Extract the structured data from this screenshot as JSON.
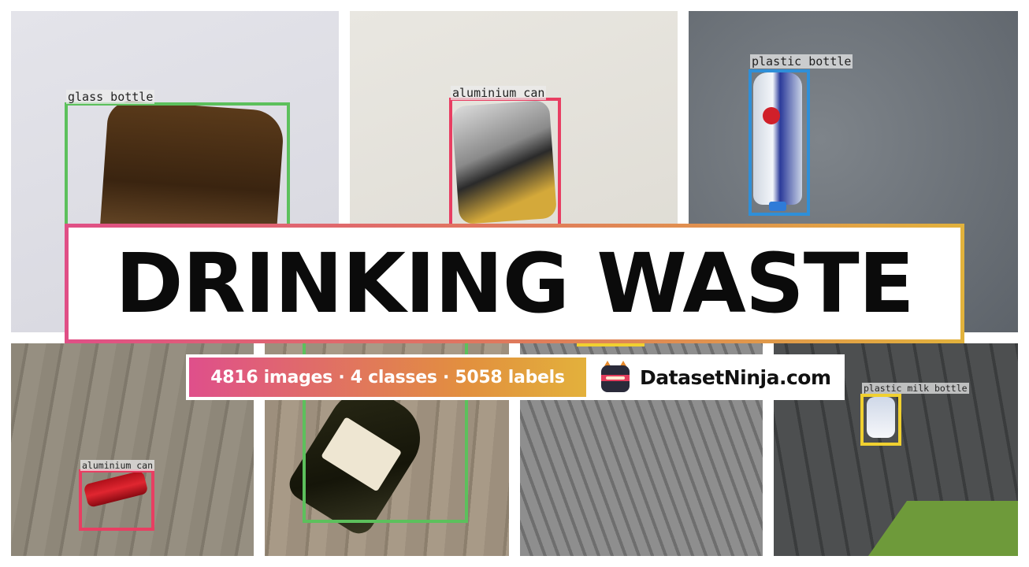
{
  "title": "DRINKING WASTE",
  "stats": "4816 images · 4 classes · 5058 labels",
  "brand": "DatasetNinja.com",
  "labels": {
    "glass_bottle": "glass bottle",
    "aluminium_can_top": "aluminium can",
    "plastic_bottle": "plastic bottle",
    "aluminium_can_bottom": "aluminium can",
    "plastic_milk_bottle": "plastic milk bottle"
  },
  "colors": {
    "glass_bottle": "#5cc05c",
    "aluminium_can": "#e83e62",
    "plastic_bottle": "#2f8fd8",
    "plastic_milk_bottle": "#f0d030"
  }
}
